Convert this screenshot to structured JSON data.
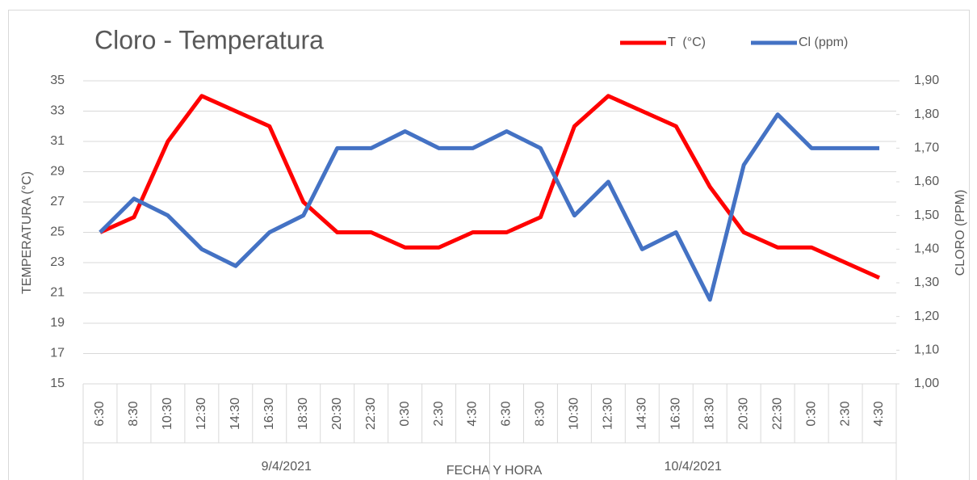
{
  "chart_data": {
    "type": "line",
    "title": "Cloro - Temperatura",
    "categories": [
      "6:30",
      "8:30",
      "10:30",
      "12:30",
      "14:30",
      "16:30",
      "18:30",
      "20:30",
      "22:30",
      "0:30",
      "2:30",
      "4:30",
      "6:30",
      "8:30",
      "10:30",
      "12:30",
      "14:30",
      "16:30",
      "18:30",
      "20:30",
      "22:30",
      "0:30",
      "2:30",
      "4:30"
    ],
    "group_labels": [
      "9/4/2021",
      "10/4/2021"
    ],
    "x_label": "FECHA Y HORA",
    "y_label": "TEMPERATURA (°C)",
    "y2_label": "CLORO (PPM)",
    "series": [
      {
        "name": "T  (°C)",
        "color": "#ff0000",
        "values": [
          25,
          26,
          31,
          34,
          33,
          32,
          27,
          25,
          25,
          24,
          24,
          25,
          25,
          26,
          32,
          34,
          33,
          32,
          28,
          25,
          24,
          24,
          23,
          22
        ]
      },
      {
        "name": "Cl (ppm)",
        "color": "#4472c4",
        "axis": "y2",
        "values": [
          1.45,
          1.55,
          1.5,
          1.4,
          1.35,
          1.45,
          1.5,
          1.7,
          1.7,
          1.75,
          1.7,
          1.7,
          1.75,
          1.7,
          1.5,
          1.6,
          1.4,
          1.45,
          1.25,
          1.65,
          1.8,
          1.7,
          1.7,
          1.7
        ]
      }
    ],
    "ylim": [
      15,
      35
    ],
    "yticks": [
      15,
      17,
      19,
      21,
      23,
      25,
      27,
      29,
      31,
      33,
      35
    ],
    "y2lim": [
      1.0,
      1.9
    ],
    "y2ticks": [
      {
        "value": 1.0,
        "label": "1,00"
      },
      {
        "value": 1.1,
        "label": "1,10"
      },
      {
        "value": 1.2,
        "label": "1,20"
      },
      {
        "value": 1.3,
        "label": "1,30"
      },
      {
        "value": 1.4,
        "label": "1,40"
      },
      {
        "value": 1.5,
        "label": "1,50"
      },
      {
        "value": 1.6,
        "label": "1,60"
      },
      {
        "value": 1.7,
        "label": "1,70"
      },
      {
        "value": 1.8,
        "label": "1,80"
      },
      {
        "value": 1.9,
        "label": "1,90"
      }
    ],
    "grid": true,
    "legend": "top-right"
  }
}
